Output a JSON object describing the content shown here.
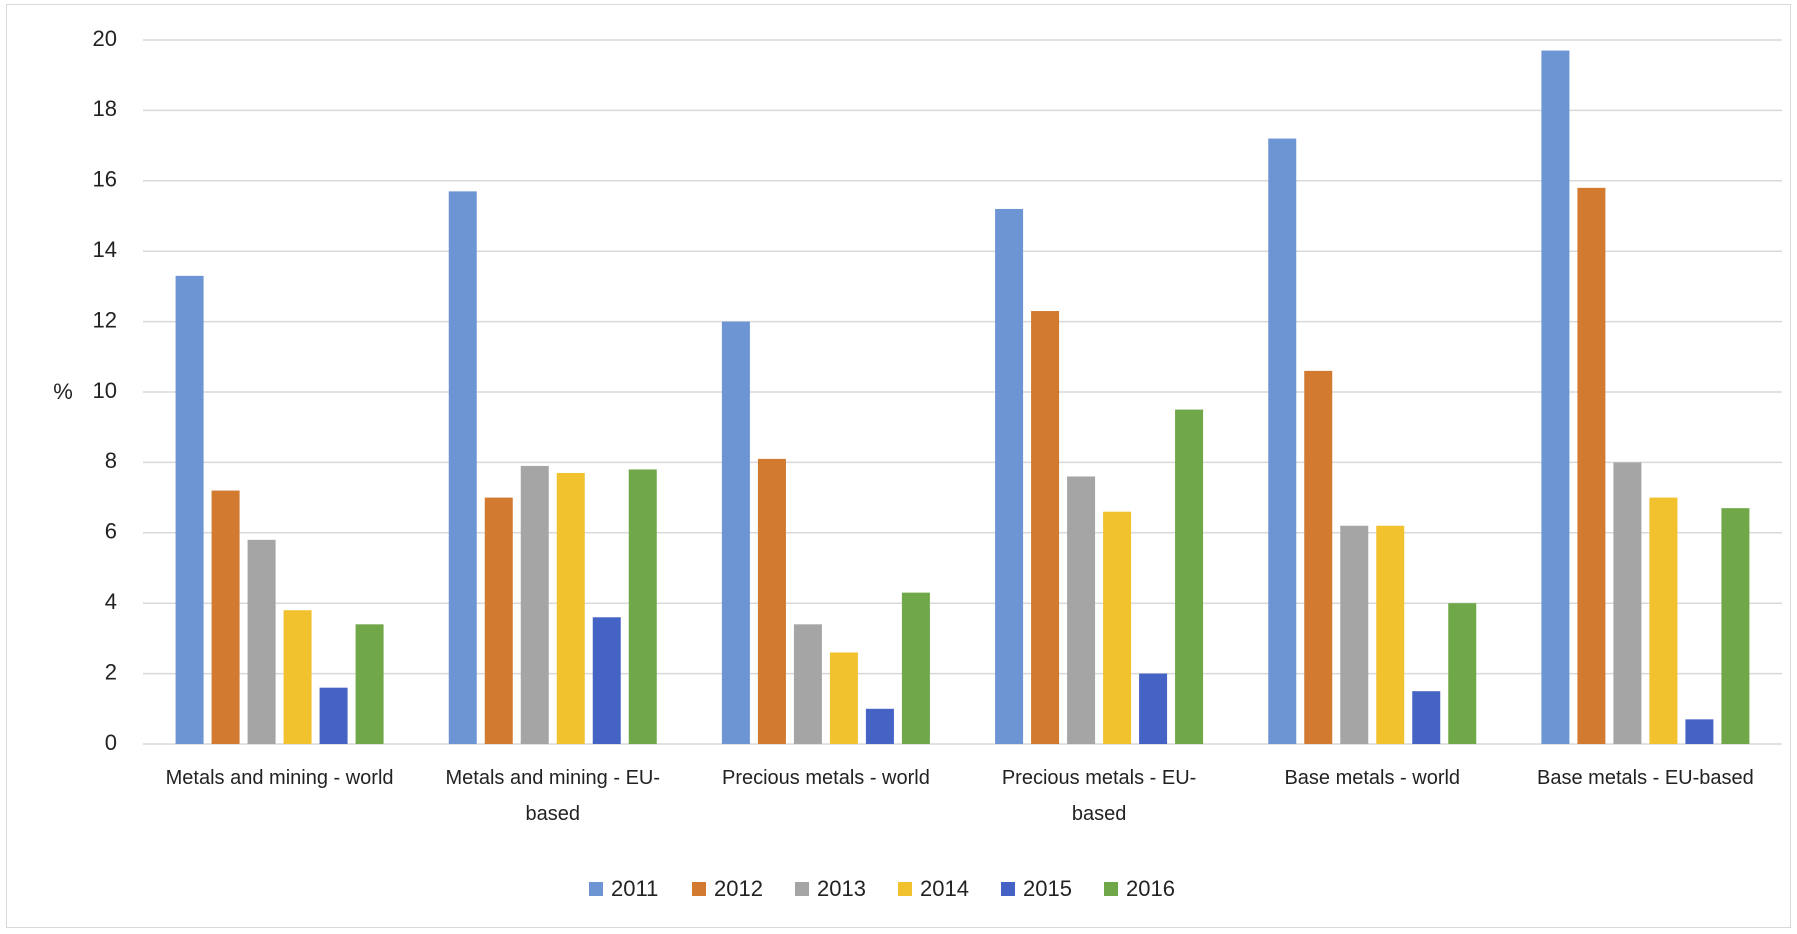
{
  "chart_data": {
    "type": "bar",
    "y_label": "%",
    "categories": [
      "Metals and mining - world",
      "Metals and mining - EU-based",
      "Precious metals - world",
      "Precious metals - EU-based",
      "Base metals - world",
      "Base metals - EU-based"
    ],
    "series": [
      {
        "name": "2011",
        "color": "#6d95d4",
        "values": [
          13.3,
          15.7,
          12.0,
          15.2,
          17.2,
          19.7
        ]
      },
      {
        "name": "2012",
        "color": "#d17a30",
        "values": [
          7.2,
          7.0,
          8.1,
          12.3,
          10.6,
          15.8
        ]
      },
      {
        "name": "2013",
        "color": "#a5a5a5",
        "values": [
          5.8,
          7.9,
          3.4,
          7.6,
          6.2,
          8.0
        ]
      },
      {
        "name": "2014",
        "color": "#f2c12e",
        "values": [
          3.8,
          7.7,
          2.6,
          6.6,
          6.2,
          7.0
        ]
      },
      {
        "name": "2015",
        "color": "#4562c5",
        "values": [
          1.6,
          3.6,
          1.0,
          2.0,
          1.5,
          0.7
        ]
      },
      {
        "name": "2016",
        "color": "#70a748",
        "values": [
          3.4,
          7.8,
          4.3,
          9.5,
          4.0,
          6.7
        ]
      }
    ],
    "ylim": [
      0,
      20
    ],
    "yticks": [
      0,
      2,
      4,
      6,
      8,
      10,
      12,
      14,
      16,
      18,
      20
    ],
    "grid": true,
    "legend": "bottom"
  }
}
